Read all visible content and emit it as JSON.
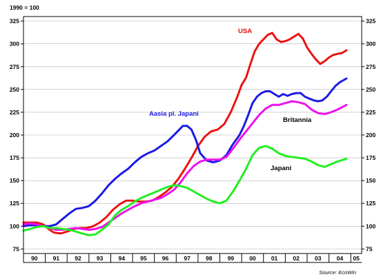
{
  "chart_data": {
    "type": "line",
    "index_note": "1990 = 100",
    "source": "Source: EcoWin",
    "ylim": [
      70,
      330
    ],
    "yticks": [
      75,
      100,
      125,
      150,
      175,
      200,
      225,
      250,
      275,
      300,
      325
    ],
    "xlim": [
      1990,
      2005.5
    ],
    "xtick_labels": [
      "90",
      "91",
      "92",
      "93",
      "94",
      "95",
      "96",
      "97",
      "98",
      "99",
      "00",
      "01",
      "02",
      "03",
      "04",
      "05"
    ],
    "grid": "horizontal",
    "legend": "inline labels",
    "series": [
      {
        "name": "USA",
        "color": "#ee1111",
        "x": [
          1990.0,
          1990.3,
          1990.6,
          1990.9,
          1991.2,
          1991.4,
          1991.7,
          1992.0,
          1992.3,
          1992.6,
          1992.9,
          1993.2,
          1993.5,
          1993.8,
          1994.1,
          1994.4,
          1994.7,
          1995.0,
          1995.3,
          1995.6,
          1995.9,
          1996.2,
          1996.5,
          1996.8,
          1997.1,
          1997.4,
          1997.7,
          1998.0,
          1998.3,
          1998.6,
          1998.9,
          1999.2,
          1999.5,
          1999.8,
          2000.0,
          2000.2,
          2000.4,
          2000.6,
          2000.8,
          2001.0,
          2001.2,
          2001.4,
          2001.6,
          2001.8,
          2002.0,
          2002.2,
          2002.4,
          2002.6,
          2002.8,
          2003.0,
          2003.2,
          2003.4,
          2003.6,
          2003.8,
          2004.0,
          2004.2,
          2004.4,
          2004.6,
          2004.8
        ],
        "y": [
          104,
          104,
          104,
          102,
          96,
          93,
          92,
          94,
          97,
          98,
          98,
          100,
          104,
          110,
          118,
          124,
          128,
          128,
          127,
          127,
          128,
          132,
          137,
          143,
          152,
          163,
          175,
          188,
          198,
          204,
          206,
          212,
          225,
          242,
          255,
          263,
          278,
          292,
          300,
          305,
          310,
          312,
          305,
          302,
          303,
          305,
          308,
          311,
          306,
          296,
          289,
          283,
          278,
          281,
          285,
          288,
          289,
          290,
          293
        ]
      },
      {
        "name": "Aasia pl. Japani",
        "color": "#1a1ae6",
        "x": [
          1990.0,
          1990.3,
          1990.6,
          1990.9,
          1991.2,
          1991.5,
          1991.8,
          1992.1,
          1992.4,
          1992.7,
          1993.0,
          1993.3,
          1993.6,
          1993.9,
          1994.2,
          1994.5,
          1994.8,
          1995.1,
          1995.4,
          1995.7,
          1996.0,
          1996.3,
          1996.6,
          1996.9,
          1997.1,
          1997.3,
          1997.5,
          1997.7,
          1997.9,
          1998.1,
          1998.4,
          1998.7,
          1999.0,
          1999.3,
          1999.6,
          1999.9,
          2000.1,
          2000.3,
          2000.5,
          2000.7,
          2000.9,
          2001.1,
          2001.3,
          2001.5,
          2001.7,
          2001.9,
          2002.1,
          2002.3,
          2002.5,
          2002.7,
          2002.9,
          2003.1,
          2003.3,
          2003.5,
          2003.7,
          2003.9,
          2004.1,
          2004.3,
          2004.5,
          2004.8
        ],
        "y": [
          100,
          101,
          101,
          100,
          100,
          102,
          108,
          114,
          119,
          120,
          122,
          128,
          136,
          145,
          152,
          158,
          163,
          170,
          176,
          180,
          183,
          188,
          193,
          200,
          205,
          210,
          210,
          206,
          195,
          180,
          172,
          170,
          172,
          178,
          190,
          200,
          210,
          222,
          235,
          242,
          246,
          248,
          248,
          245,
          242,
          245,
          243,
          245,
          246,
          246,
          242,
          240,
          238,
          237,
          238,
          242,
          248,
          254,
          258,
          262
        ]
      },
      {
        "name": "Britannia",
        "color": "#ee11ee",
        "x": [
          1990.0,
          1990.3,
          1990.6,
          1990.9,
          1991.2,
          1991.5,
          1991.8,
          1992.1,
          1992.4,
          1992.7,
          1993.0,
          1993.3,
          1993.6,
          1993.9,
          1994.2,
          1994.5,
          1994.8,
          1995.1,
          1995.4,
          1995.7,
          1996.0,
          1996.3,
          1996.6,
          1996.9,
          1997.2,
          1997.5,
          1997.8,
          1998.1,
          1998.4,
          1998.7,
          1999.0,
          1999.3,
          1999.6,
          1999.9,
          2000.2,
          2000.5,
          2000.8,
          2001.1,
          2001.4,
          2001.7,
          2002.0,
          2002.3,
          2002.6,
          2002.9,
          2003.2,
          2003.5,
          2003.8,
          2004.1,
          2004.4,
          2004.8
        ],
        "y": [
          102,
          103,
          102,
          100,
          98,
          96,
          96,
          97,
          98,
          97,
          96,
          97,
          99,
          104,
          109,
          114,
          118,
          122,
          125,
          127,
          129,
          131,
          135,
          140,
          148,
          158,
          166,
          171,
          173,
          173,
          173,
          176,
          185,
          195,
          204,
          213,
          222,
          229,
          233,
          233,
          235,
          237,
          236,
          234,
          228,
          224,
          223,
          225,
          228,
          233
        ]
      },
      {
        "name": "Japani",
        "color": "#22ee22",
        "x": [
          1990.0,
          1990.3,
          1990.6,
          1990.9,
          1991.2,
          1991.5,
          1991.8,
          1992.1,
          1992.4,
          1992.7,
          1993.0,
          1993.3,
          1993.6,
          1993.9,
          1994.2,
          1994.5,
          1994.8,
          1995.1,
          1995.4,
          1995.7,
          1996.0,
          1996.3,
          1996.6,
          1996.9,
          1997.2,
          1997.5,
          1997.8,
          1998.1,
          1998.4,
          1998.7,
          1999.0,
          1999.3,
          1999.6,
          1999.9,
          2000.2,
          2000.5,
          2000.8,
          2001.1,
          2001.4,
          2001.7,
          2002.0,
          2002.3,
          2002.6,
          2002.9,
          2003.2,
          2003.5,
          2003.8,
          2004.1,
          2004.4,
          2004.8
        ],
        "y": [
          95,
          97,
          99,
          100,
          98,
          98,
          97,
          96,
          94,
          92,
          90,
          91,
          96,
          102,
          112,
          118,
          122,
          127,
          131,
          134,
          137,
          140,
          143,
          145,
          144,
          142,
          138,
          134,
          130,
          127,
          125,
          128,
          138,
          150,
          163,
          178,
          186,
          188,
          185,
          180,
          177,
          176,
          175,
          174,
          171,
          167,
          165,
          168,
          171,
          174
        ]
      }
    ]
  }
}
